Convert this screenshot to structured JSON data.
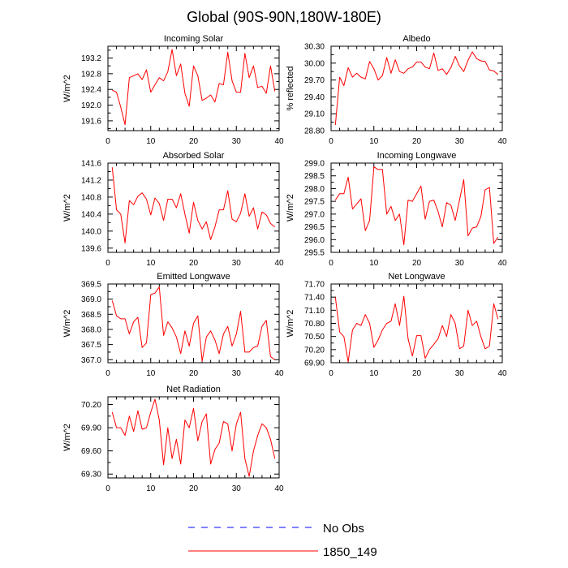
{
  "title": "Global (90S-90N,180W-180E)",
  "line_color": "#ff0000",
  "obs_color": "#0000ff",
  "legend": {
    "obs_label": "No Obs",
    "model_label": "1850_149"
  },
  "chart_data": [
    {
      "type": "line",
      "title": "Incoming Solar",
      "ylabel": "W/m^2",
      "xlim": [
        0,
        40
      ],
      "ylim": [
        191.35,
        193.5
      ],
      "xticks": [
        "0",
        "10",
        "20",
        "30",
        "40"
      ],
      "xtick_values": [
        0,
        10,
        20,
        30,
        40
      ],
      "yticks": [
        "191.6",
        "192.0",
        "192.4",
        "192.8",
        "193.2"
      ],
      "ytick_values": [
        191.6,
        192.0,
        192.4,
        192.8,
        193.2
      ],
      "series": [
        {
          "name": "1850_149",
          "x_start": 1,
          "values": [
            192.38,
            192.33,
            191.95,
            191.5,
            192.7,
            192.75,
            192.8,
            192.65,
            192.9,
            192.33,
            192.52,
            192.7,
            192.62,
            192.85,
            193.42,
            192.75,
            193.05,
            192.3,
            191.97,
            193.0,
            192.75,
            192.12,
            192.18,
            192.26,
            192.08,
            192.55,
            192.52,
            193.35,
            192.62,
            192.33,
            192.33,
            193.32,
            192.7,
            193.0,
            192.45,
            192.48,
            192.3,
            193.0,
            192.35
          ]
        }
      ]
    },
    {
      "type": "line",
      "title": "Albedo",
      "ylabel": "% reflected",
      "xlim": [
        0,
        40
      ],
      "ylim": [
        28.8,
        30.3
      ],
      "xticks": [
        "0",
        "10",
        "20",
        "30",
        "40"
      ],
      "xtick_values": [
        0,
        10,
        20,
        30,
        40
      ],
      "yticks": [
        "28.80",
        "29.10",
        "29.40",
        "29.70",
        "30.00",
        "30.30"
      ],
      "ytick_values": [
        28.8,
        29.1,
        29.4,
        29.7,
        30.0,
        30.3
      ],
      "series": [
        {
          "name": "1850_149",
          "x_start": 1,
          "values": [
            28.9,
            29.75,
            29.6,
            29.92,
            29.75,
            29.82,
            29.75,
            29.72,
            30.03,
            29.9,
            29.7,
            29.78,
            30.1,
            29.82,
            30.06,
            29.85,
            29.82,
            29.9,
            29.93,
            30.02,
            30.02,
            29.93,
            29.9,
            30.18,
            29.87,
            29.9,
            29.8,
            29.92,
            30.12,
            29.95,
            29.85,
            30.05,
            30.2,
            30.08,
            30.04,
            30.03,
            29.88,
            29.86,
            29.8
          ]
        }
      ]
    },
    {
      "type": "line",
      "title": "Absorbed Solar",
      "ylabel": "W/m^2",
      "xlim": [
        0,
        40
      ],
      "ylim": [
        139.5,
        141.6
      ],
      "xticks": [
        "0",
        "10",
        "20",
        "30",
        "40"
      ],
      "xtick_values": [
        0,
        10,
        20,
        30,
        40
      ],
      "yticks": [
        "139.6",
        "140.0",
        "140.4",
        "140.8",
        "141.2",
        "141.6"
      ],
      "ytick_values": [
        139.6,
        140.0,
        140.4,
        140.8,
        141.2,
        141.6
      ],
      "series": [
        {
          "name": "1850_149",
          "x_start": 1,
          "values": [
            141.5,
            140.5,
            140.4,
            139.72,
            140.72,
            140.62,
            140.82,
            140.9,
            140.75,
            140.38,
            140.78,
            140.65,
            140.25,
            140.75,
            140.75,
            140.55,
            140.88,
            140.4,
            139.95,
            140.68,
            140.25,
            140.05,
            140.22,
            139.8,
            140.1,
            140.5,
            140.5,
            140.95,
            140.28,
            140.22,
            140.42,
            140.88,
            140.35,
            140.55,
            140.05,
            140.45,
            140.38,
            140.18,
            140.1
          ]
        }
      ]
    },
    {
      "type": "line",
      "title": "Incoming Longwave",
      "ylabel": "W/m^2",
      "xlim": [
        0,
        40
      ],
      "ylim": [
        295.5,
        299.0
      ],
      "xticks": [
        "0",
        "10",
        "20",
        "30",
        "40"
      ],
      "xtick_values": [
        0,
        10,
        20,
        30,
        40
      ],
      "yticks": [
        "295.5",
        "296.0",
        "296.5",
        "297.0",
        "297.5",
        "298.0",
        "298.5",
        "299.0"
      ],
      "ytick_values": [
        295.5,
        296.0,
        296.5,
        297.0,
        297.5,
        298.0,
        298.5,
        299.0
      ],
      "series": [
        {
          "name": "1850_149",
          "x_start": 1,
          "values": [
            297.55,
            297.8,
            297.8,
            298.45,
            297.2,
            297.4,
            297.6,
            296.35,
            296.75,
            298.85,
            298.75,
            298.75,
            297.0,
            297.3,
            296.75,
            297.0,
            295.8,
            297.55,
            297.5,
            297.8,
            298.1,
            296.8,
            297.5,
            297.55,
            297.1,
            296.5,
            297.45,
            297.35,
            296.75,
            297.55,
            298.35,
            296.15,
            296.45,
            296.5,
            296.9,
            297.95,
            298.05,
            295.85,
            296.1
          ]
        }
      ]
    },
    {
      "type": "line",
      "title": "Emitted Longwave",
      "ylabel": "W/m^2",
      "xlim": [
        0,
        40
      ],
      "ylim": [
        366.9,
        369.5
      ],
      "xticks": [
        "0",
        "10",
        "20",
        "30",
        "40"
      ],
      "xtick_values": [
        0,
        10,
        20,
        30,
        40
      ],
      "yticks": [
        "367.0",
        "367.5",
        "368.0",
        "368.5",
        "369.0",
        "369.5"
      ],
      "ytick_values": [
        367.0,
        367.5,
        368.0,
        368.5,
        369.0,
        369.5
      ],
      "series": [
        {
          "name": "1850_149",
          "x_start": 1,
          "values": [
            368.95,
            368.45,
            368.35,
            368.35,
            367.85,
            368.25,
            368.4,
            367.4,
            367.55,
            369.15,
            369.2,
            369.4,
            367.8,
            368.25,
            368.05,
            367.75,
            367.2,
            367.95,
            367.45,
            368.2,
            368.45,
            366.95,
            367.75,
            367.95,
            367.65,
            367.2,
            367.85,
            368.1,
            367.45,
            367.85,
            368.6,
            367.25,
            367.25,
            367.4,
            367.45,
            368.1,
            368.3,
            367.1,
            367.0
          ]
        }
      ]
    },
    {
      "type": "line",
      "title": "Net Longwave",
      "ylabel": "W/m^2",
      "xlim": [
        0,
        40
      ],
      "ylim": [
        69.9,
        71.7
      ],
      "xticks": [
        "0",
        "10",
        "20",
        "30",
        "40"
      ],
      "xtick_values": [
        0,
        10,
        20,
        30,
        40
      ],
      "yticks": [
        "69.90",
        "70.20",
        "70.50",
        "70.80",
        "71.10",
        "71.40",
        "71.70"
      ],
      "ytick_values": [
        69.9,
        70.2,
        70.5,
        70.8,
        71.1,
        71.4,
        71.7
      ],
      "series": [
        {
          "name": "1850_149",
          "x_start": 1,
          "values": [
            71.4,
            70.6,
            70.5,
            69.92,
            70.65,
            70.8,
            70.75,
            71.0,
            70.8,
            70.25,
            70.42,
            70.65,
            70.8,
            70.85,
            71.25,
            70.75,
            71.42,
            70.45,
            70.05,
            70.52,
            70.52,
            70.0,
            70.2,
            70.32,
            70.45,
            70.75,
            70.5,
            71.0,
            70.8,
            70.22,
            70.28,
            71.1,
            70.75,
            70.85,
            70.5,
            70.22,
            70.28,
            71.25,
            70.9
          ]
        }
      ]
    },
    {
      "type": "line",
      "title": "Net Radiation",
      "ylabel": "W/m^2",
      "xlim": [
        0,
        40
      ],
      "ylim": [
        69.25,
        70.3
      ],
      "xticks": [
        "0",
        "10",
        "20",
        "30",
        "40"
      ],
      "xtick_values": [
        0,
        10,
        20,
        30,
        40
      ],
      "yticks": [
        "69.30",
        "69.60",
        "69.90",
        "70.20"
      ],
      "ytick_values": [
        69.3,
        69.6,
        69.9,
        70.2
      ],
      "series": [
        {
          "name": "1850_149",
          "x_start": 1,
          "values": [
            70.1,
            69.9,
            69.9,
            69.8,
            70.05,
            69.85,
            70.12,
            69.88,
            69.9,
            70.1,
            70.27,
            70.0,
            69.42,
            69.9,
            69.5,
            69.75,
            69.43,
            70.0,
            69.9,
            70.15,
            69.73,
            69.98,
            70.08,
            69.43,
            69.62,
            69.7,
            69.98,
            69.95,
            69.6,
            69.95,
            70.1,
            69.5,
            69.27,
            69.6,
            69.8,
            69.95,
            69.9,
            69.75,
            69.5
          ]
        }
      ]
    }
  ]
}
